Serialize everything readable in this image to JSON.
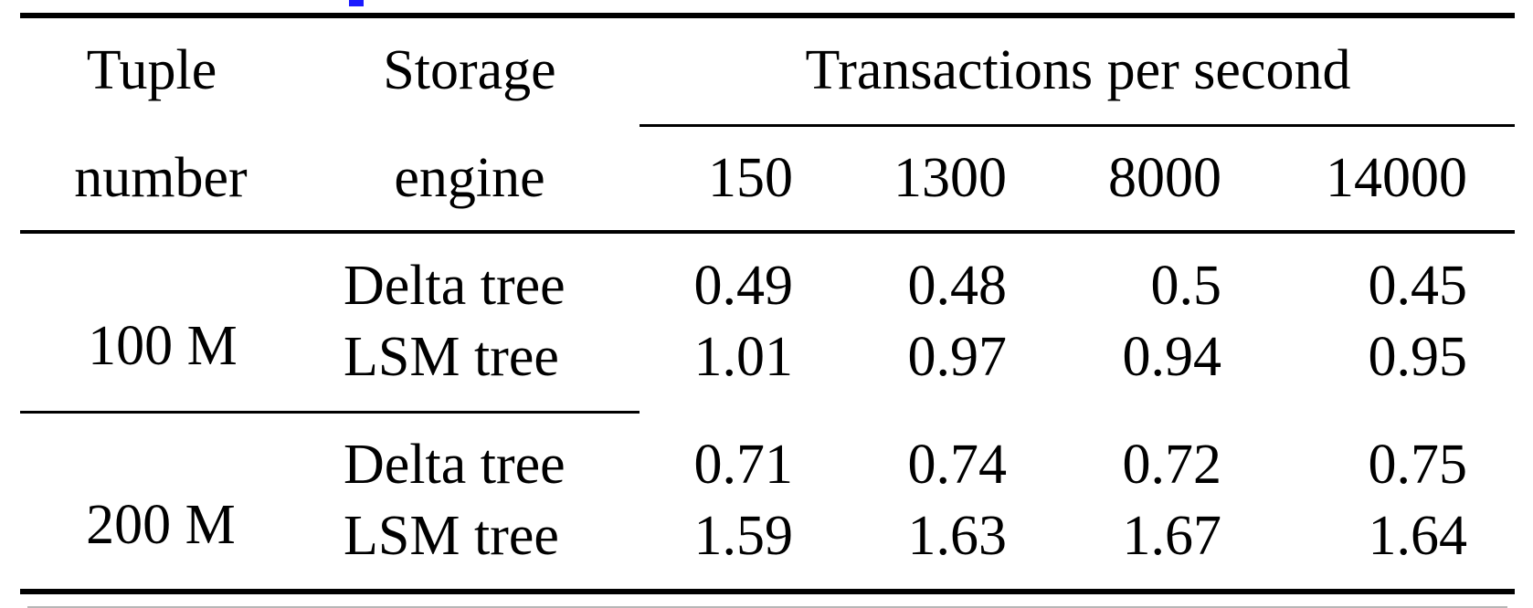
{
  "table": {
    "header": {
      "tuple_line1": "Tuple",
      "tuple_line2": "number",
      "engine_line1": "Storage",
      "engine_line2": "engine",
      "tps_group": "Transactions per second",
      "tps_columns": [
        "150",
        "1300",
        "8000",
        "14000"
      ]
    },
    "groups": [
      {
        "tuple_number": "100 M",
        "rows": [
          {
            "engine": "Delta tree",
            "values": [
              "0.49",
              "0.48",
              "0.5",
              "0.45"
            ]
          },
          {
            "engine": "LSM tree",
            "values": [
              "1.01",
              "0.97",
              "0.94",
              "0.95"
            ]
          }
        ]
      },
      {
        "tuple_number": "200 M",
        "rows": [
          {
            "engine": "Delta tree",
            "values": [
              "0.71",
              "0.74",
              "0.72",
              "0.75"
            ]
          },
          {
            "engine": "LSM tree",
            "values": [
              "1.59",
              "1.63",
              "1.67",
              "1.64"
            ]
          }
        ]
      }
    ]
  }
}
